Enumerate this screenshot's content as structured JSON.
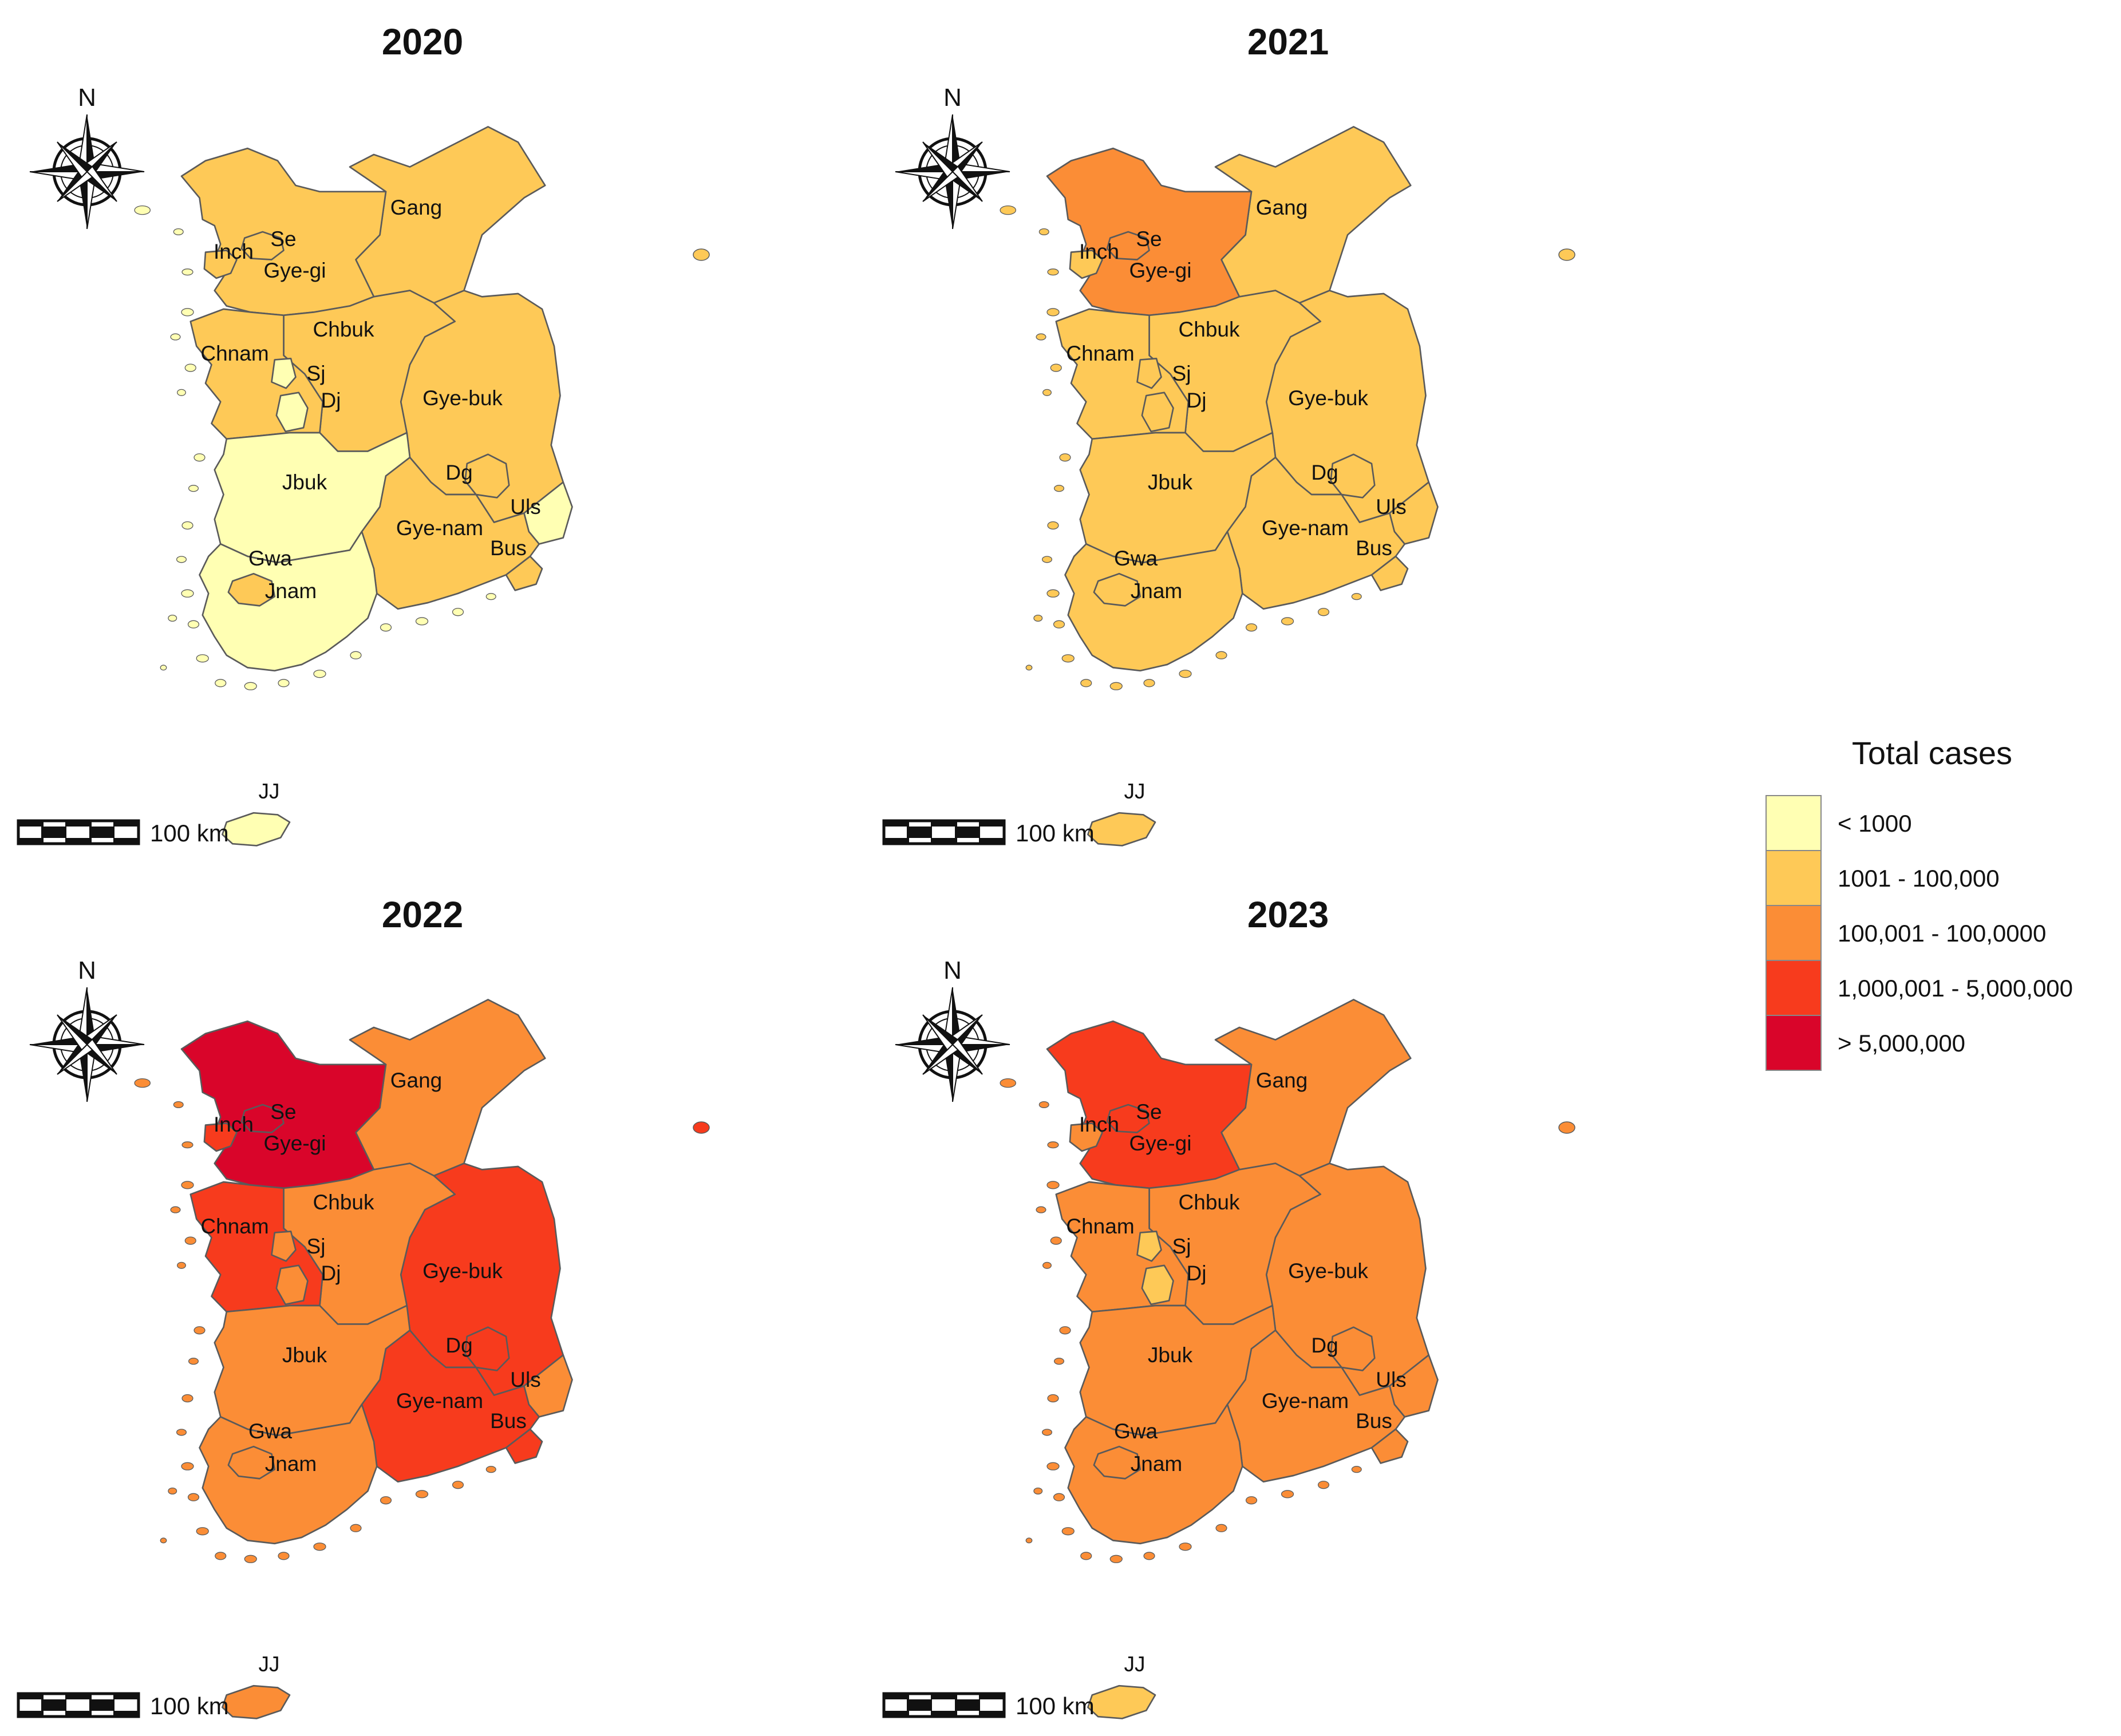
{
  "colors": {
    "lt1000": "#FFFFB3",
    "r1001_100000": "#FEC957",
    "r100001_1000000": "#FB8D36",
    "r1000001_5000000": "#F73B1D",
    "gt5000000": "#D9052A"
  },
  "scale_label": "100 km",
  "north_label": "N",
  "legend": {
    "title": "Total cases",
    "items": [
      {
        "label": "< 1000",
        "color_key": "lt1000"
      },
      {
        "label": "1001 - 100,000",
        "color_key": "r1001_100000"
      },
      {
        "label": "100,001 - 100,0000",
        "color_key": "r100001_1000000"
      },
      {
        "label": "1,000,001 - 5,000,000",
        "color_key": "r1000001_5000000"
      },
      {
        "label": "> 5,000,000",
        "color_key": "gt5000000"
      }
    ]
  },
  "region_labels": {
    "Gang": "Gang",
    "Se": "Se",
    "Inch": "Inch",
    "Gye-gi": "Gye-gi",
    "Chbuk": "Chbuk",
    "Chnam": "Chnam",
    "Sj": "Sj",
    "Dj": "Dj",
    "Gye-buk": "Gye-buk",
    "Dg": "Dg",
    "Jbuk": "Jbuk",
    "Uls": "Uls",
    "Gye-nam": "Gye-nam",
    "Bus": "Bus",
    "Gwa": "Gwa",
    "Jnam": "Jnam",
    "JJ": "JJ"
  },
  "chart_data": [
    {
      "type": "choropleth",
      "title": "2020",
      "regions": {
        "Gang": "1001 - 100,000",
        "Gye-gi": "1001 - 100,000",
        "Se": "1001 - 100,000",
        "Inch": "1001 - 100,000",
        "Chbuk": "1001 - 100,000",
        "Chnam": "1001 - 100,000",
        "Sj": "< 1000",
        "Dj": "< 1000",
        "Gye-buk": "1001 - 100,000",
        "Dg": "1001 - 100,000",
        "Jbuk": "< 1000",
        "Uls": "< 1000",
        "Gye-nam": "1001 - 100,000",
        "Bus": "1001 - 100,000",
        "Gwa": "1001 - 100,000",
        "Jnam": "< 1000",
        "JJ": "< 1000"
      }
    },
    {
      "type": "choropleth",
      "title": "2021",
      "regions": {
        "Gang": "1001 - 100,000",
        "Gye-gi": "100,001 - 100,0000",
        "Se": "100,001 - 100,0000",
        "Inch": "1001 - 100,000",
        "Chbuk": "1001 - 100,000",
        "Chnam": "1001 - 100,000",
        "Sj": "1001 - 100,000",
        "Dj": "1001 - 100,000",
        "Gye-buk": "1001 - 100,000",
        "Dg": "1001 - 100,000",
        "Jbuk": "1001 - 100,000",
        "Uls": "1001 - 100,000",
        "Gye-nam": "1001 - 100,000",
        "Bus": "1001 - 100,000",
        "Gwa": "1001 - 100,000",
        "Jnam": "1001 - 100,000",
        "JJ": "1001 - 100,000"
      }
    },
    {
      "type": "choropleth",
      "title": "2022",
      "regions": {
        "Gang": "100,001 - 100,0000",
        "Gye-gi": "> 5,000,000",
        "Se": "> 5,000,000",
        "Inch": "1,000,001 - 5,000,000",
        "Chbuk": "100,001 - 100,0000",
        "Chnam": "1,000,001 - 5,000,000",
        "Sj": "100,001 - 100,0000",
        "Dj": "100,001 - 100,0000",
        "Gye-buk": "1,000,001 - 5,000,000",
        "Dg": "1,000,001 - 5,000,000",
        "Jbuk": "100,001 - 100,0000",
        "Uls": "100,001 - 100,0000",
        "Gye-nam": "1,000,001 - 5,000,000",
        "Bus": "1,000,001 - 5,000,000",
        "Gwa": "100,001 - 100,0000",
        "Jnam": "100,001 - 100,0000",
        "JJ": "100,001 - 100,0000"
      }
    },
    {
      "type": "choropleth",
      "title": "2023",
      "regions": {
        "Gang": "100,001 - 100,0000",
        "Gye-gi": "1,000,001 - 5,000,000",
        "Se": "1,000,001 - 5,000,000",
        "Inch": "100,001 - 100,0000",
        "Chbuk": "100,001 - 100,0000",
        "Chnam": "100,001 - 100,0000",
        "Sj": "1001 - 100,000",
        "Dj": "1001 - 100,000",
        "Gye-buk": "100,001 - 100,0000",
        "Dg": "100,001 - 100,0000",
        "Jbuk": "100,001 - 100,0000",
        "Uls": "100,001 - 100,0000",
        "Gye-nam": "100,001 - 100,0000",
        "Bus": "100,001 - 100,0000",
        "Gwa": "100,001 - 100,0000",
        "Jnam": "100,001 - 100,0000",
        "JJ": "1001 - 100,000"
      }
    }
  ]
}
